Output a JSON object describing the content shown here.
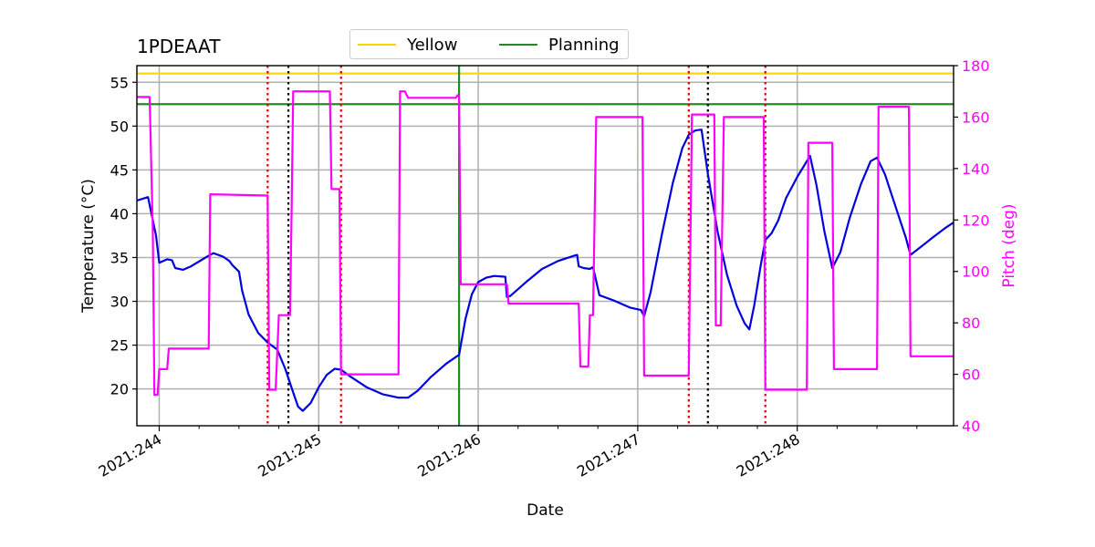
{
  "chart_data": {
    "type": "line",
    "title": "1PDEAAT",
    "xlabel": "Date",
    "ylabel_left": "Temperature ($^\\circ$C)",
    "ylabel_left_display": "Temperature (°C)",
    "ylabel_right": "Pitch (deg)",
    "x_tick_labels": [
      "2021:244",
      "2021:245",
      "2021:246",
      "2021:247",
      "2021:248"
    ],
    "x_tick_values": [
      244,
      245,
      246,
      247,
      248
    ],
    "xlim": [
      243.86,
      248.98
    ],
    "y_left_ticks": [
      20,
      25,
      30,
      35,
      40,
      45,
      50,
      55
    ],
    "y_left_lim": [
      15.8,
      56.9
    ],
    "y_right_ticks": [
      40,
      60,
      80,
      100,
      120,
      140,
      160,
      180
    ],
    "y_right_lim": [
      40,
      180
    ],
    "grid": true,
    "legend_position": "top-center",
    "legend": [
      {
        "name": "Yellow",
        "color": "#FFD700"
      },
      {
        "name": "Planning",
        "color": "#228B22"
      }
    ],
    "hlines": [
      {
        "name": "Yellow",
        "y": 56.0,
        "color": "#FFD700"
      },
      {
        "name": "Planning",
        "y": 52.5,
        "color": "#228B22"
      }
    ],
    "vlines": [
      {
        "x": 245.88,
        "color": "#228B22",
        "style": "solid"
      },
      {
        "x": 244.68,
        "color": "#E00000",
        "style": "dotted"
      },
      {
        "x": 245.14,
        "color": "#E00000",
        "style": "dotted"
      },
      {
        "x": 247.32,
        "color": "#E00000",
        "style": "dotted"
      },
      {
        "x": 247.8,
        "color": "#E00000",
        "style": "dotted"
      },
      {
        "x": 244.81,
        "color": "#000000",
        "style": "dotted"
      },
      {
        "x": 247.44,
        "color": "#000000",
        "style": "dotted"
      }
    ],
    "series": [
      {
        "axis": "left",
        "color": "#0000E0",
        "points": [
          [
            243.86,
            41.5
          ],
          [
            243.93,
            41.9
          ],
          [
            243.98,
            37.5
          ],
          [
            244.0,
            34.4
          ],
          [
            244.05,
            34.8
          ],
          [
            244.08,
            34.7
          ],
          [
            244.1,
            33.8
          ],
          [
            244.15,
            33.6
          ],
          [
            244.2,
            34.0
          ],
          [
            244.3,
            35.1
          ],
          [
            244.34,
            35.5
          ],
          [
            244.4,
            35.1
          ],
          [
            244.44,
            34.6
          ],
          [
            244.46,
            34.1
          ],
          [
            244.5,
            33.4
          ],
          [
            244.52,
            31.2
          ],
          [
            244.56,
            28.5
          ],
          [
            244.62,
            26.4
          ],
          [
            244.68,
            25.3
          ],
          [
            244.74,
            24.5
          ],
          [
            244.79,
            22.3
          ],
          [
            244.84,
            19.6
          ],
          [
            244.87,
            18.0
          ],
          [
            244.9,
            17.5
          ],
          [
            244.95,
            18.4
          ],
          [
            245.0,
            20.2
          ],
          [
            245.05,
            21.6
          ],
          [
            245.1,
            22.3
          ],
          [
            245.14,
            22.2
          ],
          [
            245.2,
            21.4
          ],
          [
            245.3,
            20.2
          ],
          [
            245.4,
            19.4
          ],
          [
            245.5,
            19.0
          ],
          [
            245.56,
            19.0
          ],
          [
            245.62,
            19.8
          ],
          [
            245.7,
            21.3
          ],
          [
            245.8,
            22.9
          ],
          [
            245.88,
            23.9
          ],
          [
            245.92,
            28.0
          ],
          [
            245.96,
            30.8
          ],
          [
            246.0,
            32.2
          ],
          [
            246.05,
            32.7
          ],
          [
            246.1,
            32.9
          ],
          [
            246.17,
            32.8
          ],
          [
            246.18,
            30.5
          ],
          [
            246.2,
            30.6
          ],
          [
            246.3,
            32.2
          ],
          [
            246.4,
            33.7
          ],
          [
            246.5,
            34.6
          ],
          [
            246.6,
            35.2
          ],
          [
            246.62,
            35.3
          ],
          [
            246.63,
            34.0
          ],
          [
            246.66,
            33.8
          ],
          [
            246.7,
            33.7
          ],
          [
            246.72,
            33.9
          ],
          [
            246.76,
            30.7
          ],
          [
            246.85,
            30.1
          ],
          [
            246.95,
            29.3
          ],
          [
            247.02,
            29.0
          ],
          [
            247.04,
            28.3
          ],
          [
            247.08,
            31.0
          ],
          [
            247.15,
            37.5
          ],
          [
            247.22,
            43.5
          ],
          [
            247.28,
            47.5
          ],
          [
            247.32,
            49.0
          ],
          [
            247.36,
            49.5
          ],
          [
            247.4,
            49.6
          ],
          [
            247.44,
            44.5
          ],
          [
            247.5,
            38.0
          ],
          [
            247.56,
            33.0
          ],
          [
            247.62,
            29.5
          ],
          [
            247.67,
            27.5
          ],
          [
            247.7,
            26.8
          ],
          [
            247.73,
            29.5
          ],
          [
            247.77,
            34.0
          ],
          [
            247.8,
            37.0
          ],
          [
            247.84,
            37.8
          ],
          [
            247.88,
            39.2
          ],
          [
            247.93,
            41.8
          ],
          [
            248.0,
            44.2
          ],
          [
            248.06,
            46.0
          ],
          [
            248.08,
            46.6
          ],
          [
            248.12,
            43.3
          ],
          [
            248.17,
            38.0
          ],
          [
            248.22,
            33.8
          ],
          [
            248.27,
            35.6
          ],
          [
            248.33,
            39.6
          ],
          [
            248.4,
            43.4
          ],
          [
            248.46,
            46.0
          ],
          [
            248.5,
            46.4
          ],
          [
            248.55,
            44.5
          ],
          [
            248.62,
            40.6
          ],
          [
            248.68,
            37.3
          ],
          [
            248.71,
            35.3
          ],
          [
            248.76,
            36.0
          ],
          [
            248.85,
            37.3
          ],
          [
            248.93,
            38.4
          ],
          [
            248.98,
            39.0
          ]
        ]
      },
      {
        "axis": "right",
        "color": "#FF00FF",
        "points": [
          [
            243.86,
            167.8
          ],
          [
            243.94,
            167.8
          ],
          [
            243.96,
            115.0
          ],
          [
            243.97,
            52.0
          ],
          [
            243.99,
            52.0
          ],
          [
            244.0,
            62.0
          ],
          [
            244.05,
            62.0
          ],
          [
            244.06,
            70.0
          ],
          [
            244.31,
            70.0
          ],
          [
            244.32,
            130.0
          ],
          [
            244.68,
            129.5
          ],
          [
            244.69,
            54.0
          ],
          [
            244.73,
            54.0
          ],
          [
            244.75,
            83.0
          ],
          [
            244.82,
            83.0
          ],
          [
            244.83,
            124.0
          ],
          [
            244.84,
            170.0
          ],
          [
            245.07,
            170.0
          ],
          [
            245.08,
            132.0
          ],
          [
            245.13,
            132.0
          ],
          [
            245.14,
            60.0
          ],
          [
            245.5,
            60.0
          ],
          [
            245.51,
            170.0
          ],
          [
            245.54,
            170.0
          ],
          [
            245.56,
            167.5
          ],
          [
            245.86,
            167.5
          ],
          [
            245.87,
            168.5
          ],
          [
            245.88,
            168.0
          ],
          [
            245.89,
            95.0
          ],
          [
            246.18,
            95.0
          ],
          [
            246.19,
            87.5
          ],
          [
            246.63,
            87.5
          ],
          [
            246.64,
            63.0
          ],
          [
            246.69,
            63.0
          ],
          [
            246.7,
            83.0
          ],
          [
            246.72,
            83.0
          ],
          [
            246.74,
            160.0
          ],
          [
            247.03,
            160.0
          ],
          [
            247.04,
            59.5
          ],
          [
            247.32,
            59.5
          ],
          [
            247.34,
            161.0
          ],
          [
            247.48,
            161.0
          ],
          [
            247.49,
            79.0
          ],
          [
            247.52,
            79.0
          ],
          [
            247.54,
            160.0
          ],
          [
            247.79,
            160.0
          ],
          [
            247.8,
            54.0
          ],
          [
            248.06,
            54.0
          ],
          [
            248.07,
            150.0
          ],
          [
            248.22,
            150.0
          ],
          [
            248.23,
            62.0
          ],
          [
            248.5,
            62.0
          ],
          [
            248.51,
            164.0
          ],
          [
            248.7,
            164.0
          ],
          [
            248.71,
            67.0
          ],
          [
            248.98,
            67.0
          ]
        ]
      }
    ]
  }
}
